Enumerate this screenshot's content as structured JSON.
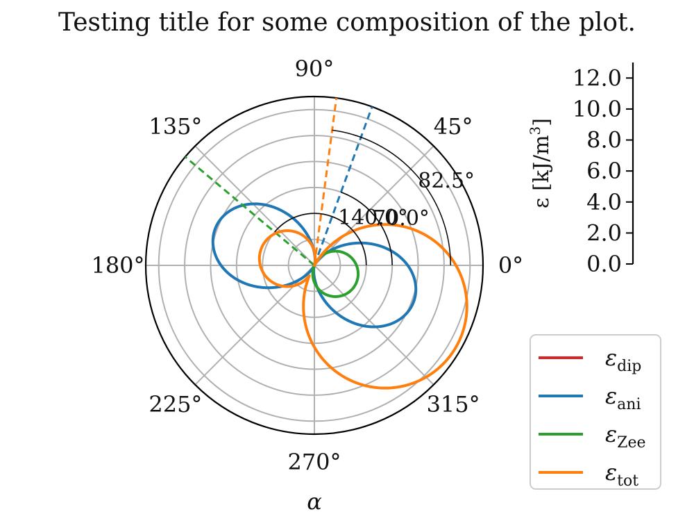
{
  "chart_data": {
    "type": "polar-line",
    "title": "Testing title for some composition of the plot.",
    "xlabel": "α",
    "angle_ticks": [
      {
        "deg": 0,
        "label": "0°"
      },
      {
        "deg": 45,
        "label": "45°"
      },
      {
        "deg": 90,
        "label": "90°"
      },
      {
        "deg": 135,
        "label": "135°"
      },
      {
        "deg": 180,
        "label": "180°"
      },
      {
        "deg": 225,
        "label": "225°"
      },
      {
        "deg": 270,
        "label": "270°"
      },
      {
        "deg": 315,
        "label": "315°"
      }
    ],
    "rlim": [
      0,
      13
    ],
    "rgrid": [
      2,
      4,
      6,
      8,
      10,
      12
    ],
    "radial_axis": {
      "label_base": "ε [kJ/m",
      "label_sup": "3",
      "label_end": "]",
      "ticks": [
        "0.0",
        "2.0",
        "4.0",
        "6.0",
        "8.0",
        "10.0",
        "12.0"
      ],
      "range": [
        0,
        13
      ]
    },
    "series": [
      {
        "key": "dip",
        "name": "ε",
        "sub": "dip",
        "color": "#d62728",
        "type": "none",
        "values": []
      },
      {
        "key": "ani",
        "name": "ε",
        "sub": "ani",
        "color": "#1f77b4",
        "type": "lobes",
        "A": 8.15,
        "axis_deg": 160,
        "q_min": 0.2,
        "q_max": 5.1,
        "dir_deg": 70.0
      },
      {
        "key": "zee",
        "name": "ε",
        "sub": "Zee",
        "color": "#2ca02c",
        "type": "circle",
        "A": 3.5,
        "center_deg": -22,
        "dir_deg": 140.0
      },
      {
        "key": "tot",
        "name": "ε",
        "sub": "tot",
        "color": "#ff7f0e",
        "type": "dual",
        "A1": 12.6,
        "axis1_deg": -30,
        "A2": 4.3,
        "axis2_deg": 166,
        "dir_deg": 82.5
      }
    ],
    "angle_markers": [
      {
        "label": "140.0°",
        "r": 4.0,
        "color": "#000000",
        "series": "zee"
      },
      {
        "label": "70.0°",
        "r": 6.0,
        "color": "#000000",
        "series": "ani"
      },
      {
        "label": "82.5°",
        "r": 10.5,
        "color": "#000000",
        "series": "tot"
      }
    ],
    "legend_position": "lower-right"
  }
}
